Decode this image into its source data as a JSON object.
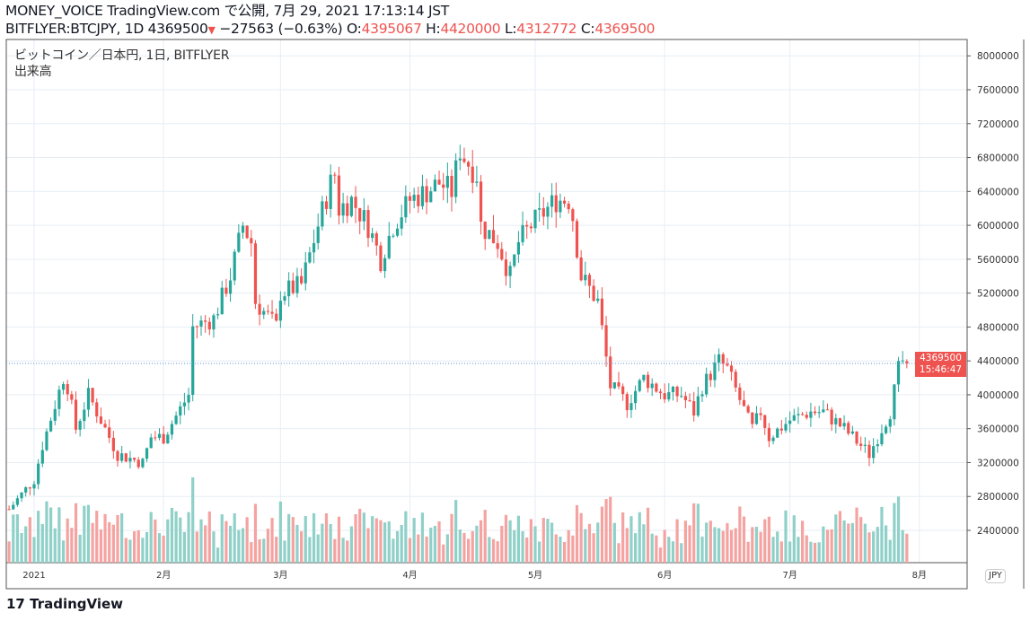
{
  "header": {
    "publisher": "MONEY_VOICE TradingView.com で公開, 7月 29, 2021 17:13:14 JST",
    "symbol": "BITFLYER:BTCJPY, 1D 4369500",
    "change": "−27563 (−0.63%)",
    "o_label": "O:",
    "o": "4395067",
    "h_label": "H:",
    "h": "4420000",
    "l_label": "L:",
    "l": "4312772",
    "c_label": "C:",
    "c": "4369500"
  },
  "legend": {
    "series": "ビットコイン／日本円, 1日, BITFLYER",
    "volume": "出来高"
  },
  "price_axis": {
    "currency": "JPY",
    "last_price": "4369500",
    "countdown": "15:46:47"
  },
  "logo": "TradingView",
  "colors": {
    "up": "#26a69a",
    "down": "#ef5350",
    "vol_up": "#8fd0c8",
    "vol_down": "#f4a3a1",
    "grid": "#e6eef5"
  },
  "chart_data": {
    "type": "candlestick",
    "symbol": "BTCJPY",
    "interval": "1D",
    "ylim": [
      2100000,
      8200000
    ],
    "yticks": [
      2400000,
      2800000,
      3200000,
      3600000,
      4000000,
      4400000,
      4800000,
      5200000,
      5600000,
      6000000,
      6400000,
      6800000,
      7200000,
      7600000,
      8000000
    ],
    "ytick_labels": [
      "2400000",
      "2800000",
      "3200000",
      "3600000",
      "4000000",
      "4400000",
      "4800000",
      "5200000",
      "5600000",
      "6000000",
      "6400000",
      "6800000",
      "7200000",
      "7600000",
      "8000000"
    ],
    "xticks": [
      {
        "date": "2021-01-01",
        "label": "2021"
      },
      {
        "date": "2021-02-01",
        "label": "2月"
      },
      {
        "date": "2021-03-01",
        "label": "3月"
      },
      {
        "date": "2021-04-01",
        "label": "4月"
      },
      {
        "date": "2021-05-01",
        "label": "5月"
      },
      {
        "date": "2021-06-01",
        "label": "6月"
      },
      {
        "date": "2021-07-01",
        "label": "7月"
      },
      {
        "date": "2021-08-01",
        "label": "8月"
      }
    ],
    "approx_closes": [
      [
        "2020-12-26",
        2650000
      ],
      [
        "2021-01-01",
        3000000
      ],
      [
        "2021-01-03",
        3400000
      ],
      [
        "2021-01-08",
        4200000
      ],
      [
        "2021-01-09",
        4100000
      ],
      [
        "2021-01-11",
        3600000
      ],
      [
        "2021-01-14",
        4000000
      ],
      [
        "2021-01-21",
        3300000
      ],
      [
        "2021-01-27",
        3200000
      ],
      [
        "2021-01-29",
        3500000
      ],
      [
        "2021-02-01",
        3500000
      ],
      [
        "2021-02-07",
        4000000
      ],
      [
        "2021-02-08",
        4800000
      ],
      [
        "2021-02-13",
        4900000
      ],
      [
        "2021-02-17",
        5400000
      ],
      [
        "2021-02-20",
        6000000
      ],
      [
        "2021-02-22",
        5800000
      ],
      [
        "2021-02-23",
        5100000
      ],
      [
        "2021-02-28",
        4800000
      ],
      [
        "2021-03-01",
        5200000
      ],
      [
        "2021-03-06",
        5300000
      ],
      [
        "2021-03-10",
        6000000
      ],
      [
        "2021-03-13",
        6500000
      ],
      [
        "2021-03-14",
        6600000
      ],
      [
        "2021-03-15",
        6200000
      ],
      [
        "2021-03-18",
        6300000
      ],
      [
        "2021-03-22",
        6000000
      ],
      [
        "2021-03-25",
        5600000
      ],
      [
        "2021-03-28",
        6000000
      ],
      [
        "2021-04-01",
        6300000
      ],
      [
        "2021-04-05",
        6400000
      ],
      [
        "2021-04-08",
        6500000
      ],
      [
        "2021-04-11",
        6400000
      ],
      [
        "2021-04-13",
        6900000
      ],
      [
        "2021-04-14",
        6800000
      ],
      [
        "2021-04-17",
        6600000
      ],
      [
        "2021-04-18",
        6000000
      ],
      [
        "2021-04-22",
        5800000
      ],
      [
        "2021-04-25",
        5400000
      ],
      [
        "2021-04-27",
        5800000
      ],
      [
        "2021-04-30",
        6000000
      ],
      [
        "2021-05-02",
        6100000
      ],
      [
        "2021-05-06",
        6300000
      ],
      [
        "2021-05-09",
        6300000
      ],
      [
        "2021-05-10",
        6100000
      ],
      [
        "2021-05-12",
        5400000
      ],
      [
        "2021-05-16",
        5100000
      ],
      [
        "2021-05-19",
        4100000
      ],
      [
        "2021-05-23",
        3900000
      ],
      [
        "2021-05-27",
        4200000
      ],
      [
        "2021-06-01",
        4000000
      ],
      [
        "2021-06-05",
        4000000
      ],
      [
        "2021-06-08",
        3800000
      ],
      [
        "2021-06-10",
        4100000
      ],
      [
        "2021-06-14",
        4400000
      ],
      [
        "2021-06-16",
        4300000
      ],
      [
        "2021-06-21",
        3700000
      ],
      [
        "2021-06-22",
        3600000
      ],
      [
        "2021-06-24",
        3800000
      ],
      [
        "2021-06-26",
        3500000
      ],
      [
        "2021-07-01",
        3700000
      ],
      [
        "2021-07-06",
        3800000
      ],
      [
        "2021-07-09",
        3800000
      ],
      [
        "2021-07-14",
        3600000
      ],
      [
        "2021-07-20",
        3300000
      ],
      [
        "2021-07-22",
        3500000
      ],
      [
        "2021-07-25",
        3800000
      ],
      [
        "2021-07-27",
        4300000
      ],
      [
        "2021-07-28",
        4397063
      ],
      [
        "2021-07-29",
        4369500
      ]
    ],
    "last_candle": {
      "date": "2021-07-29",
      "open": 4395067,
      "high": 4420000,
      "low": 4312772,
      "close": 4369500
    }
  }
}
